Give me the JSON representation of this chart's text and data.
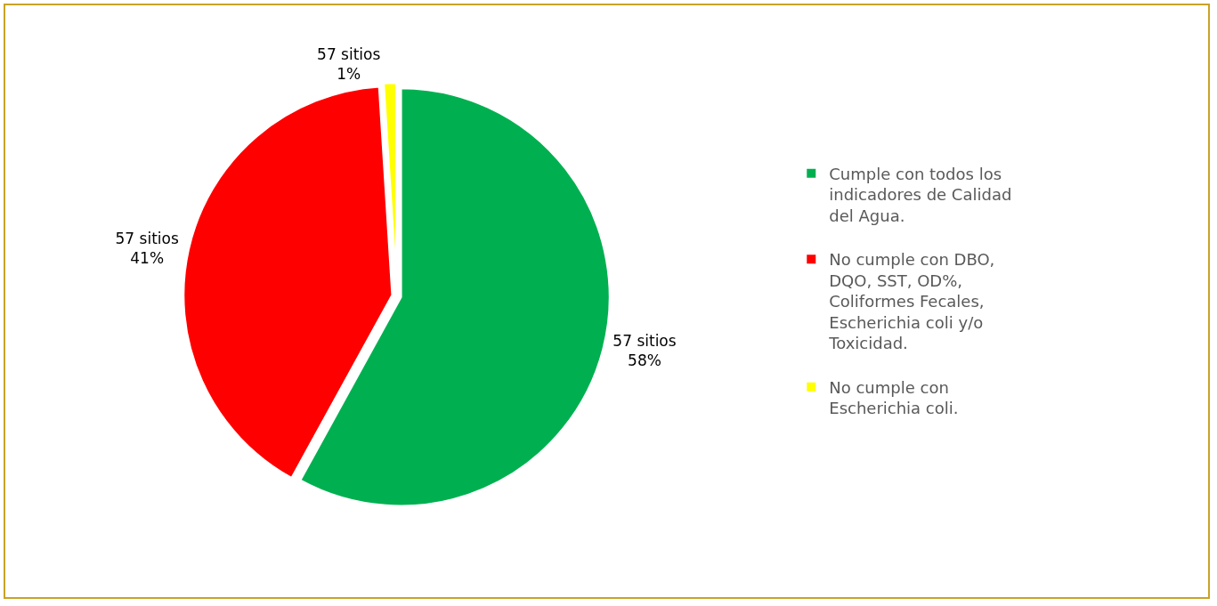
{
  "chart_data": {
    "type": "pie",
    "categories": [
      "Cumple con todos los indicadores de Calidad del Agua.",
      "No cumple con DBO, DQO, SST, OD%, Coliformes Fecales, Escherichia coli y/o Toxicidad.",
      "No cumple con Escherichia coli."
    ],
    "values": [
      58,
      41,
      1
    ],
    "colors": [
      "#00b050",
      "#ff0000",
      "#ffff00"
    ],
    "value_labels": [
      "57 sitios\n58%",
      "57 sitios\n41%",
      "57 sitios\n1%"
    ],
    "legend": "right"
  }
}
